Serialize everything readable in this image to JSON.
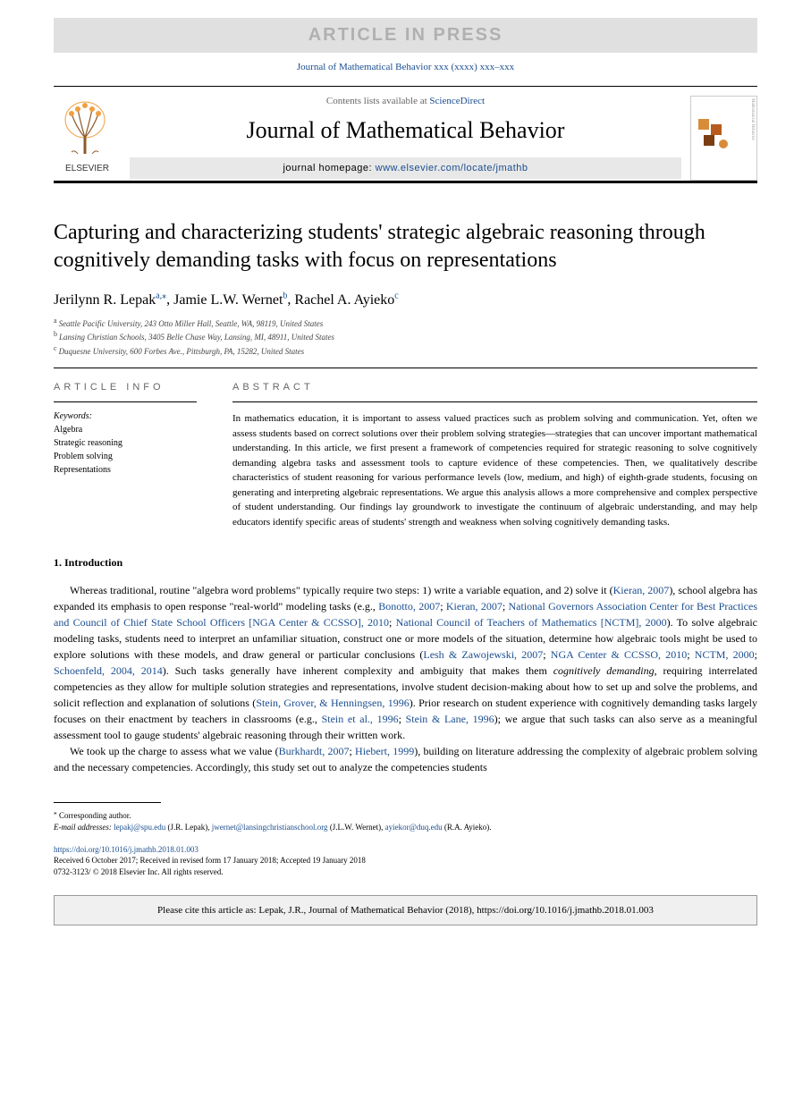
{
  "banner": "ARTICLE IN PRESS",
  "journal_ref": "Journal of Mathematical Behavior xxx (xxxx) xxx–xxx",
  "header": {
    "contents_prefix": "Contents lists available at ",
    "contents_link": "ScienceDirect",
    "journal_name": "Journal of Mathematical Behavior",
    "homepage_label": "journal homepage: ",
    "homepage_url": "www.elsevier.com/locate/jmathb",
    "publisher_logo_text": "ELSEVIER"
  },
  "colors": {
    "link": "#1a4d8f",
    "banner_bg": "#e0e0e0",
    "banner_fg": "#b0b0b0",
    "cover_accent1": "#d88c3a",
    "cover_accent2": "#b85c1e",
    "cover_accent3": "#7a3e12"
  },
  "title": "Capturing and characterizing students' strategic algebraic reasoning through cognitively demanding tasks with focus on representations",
  "authors": [
    {
      "name": "Jerilynn R. Lepak",
      "affil": "a",
      "corr": true
    },
    {
      "name": "Jamie L.W. Wernet",
      "affil": "b",
      "corr": false
    },
    {
      "name": "Rachel A. Ayieko",
      "affil": "c",
      "corr": false
    }
  ],
  "affiliations": [
    {
      "sup": "a",
      "text": "Seattle Pacific University, 243 Otto Miller Hall, Seattle, WA, 98119, United States"
    },
    {
      "sup": "b",
      "text": "Lansing Christian Schools, 3405 Belle Chase Way, Lansing, MI, 48911, United States"
    },
    {
      "sup": "c",
      "text": "Duquesne University, 600 Forbes Ave., Pittsburgh, PA, 15282, United States"
    }
  ],
  "info_header": "ARTICLE INFO",
  "abstract_header": "ABSTRACT",
  "keywords_label": "Keywords:",
  "keywords": [
    "Algebra",
    "Strategic reasoning",
    "Problem solving",
    "Representations"
  ],
  "abstract_text": "In mathematics education, it is important to assess valued practices such as problem solving and communication. Yet, often we assess students based on correct solutions over their problem solving strategies—strategies that can uncover important mathematical understanding. In this article, we first present a framework of competencies required for strategic reasoning to solve cognitively demanding algebra tasks and assessment tools to capture evidence of these competencies. Then, we qualitatively describe characteristics of student reasoning for various performance levels (low, medium, and high) of eighth-grade students, focusing on generating and interpreting algebraic representations. We argue this analysis allows a more comprehensive and complex perspective of student understanding. Our findings lay groundwork to investigate the continuum of algebraic understanding, and may help educators identify specific areas of students' strength and weakness when solving cognitively demanding tasks.",
  "section1_heading": "1. Introduction",
  "intro": {
    "p1_pre": "Whereas traditional, routine \"algebra word problems\" typically require two steps: 1) write a variable equation, and 2) solve it (",
    "p1_c1": "Kieran, 2007",
    "p1_mid1": "), school algebra has expanded its emphasis to open response \"real-world\" modeling tasks (e.g., ",
    "p1_c2": "Bonotto, 2007",
    "p1_mid2": "; ",
    "p1_c3": "Kieran, 2007",
    "p1_mid3": "; ",
    "p1_c4": "National Governors Association Center for Best Practices and Council of Chief State School Officers [NGA Center & CCSSO], 2010",
    "p1_mid4": "; ",
    "p1_c5": "National Council of Teachers of Mathematics [NCTM], 2000",
    "p1_mid5": "). To solve algebraic modeling tasks, students need to interpret an unfamiliar situation, construct one or more models of the situation, determine how algebraic tools might be used to explore solutions with these models, and draw general or particular conclusions (",
    "p1_c6": "Lesh & Zawojewski, 2007",
    "p1_mid6": "; ",
    "p1_c7": "NGA Center & CCSSO, 2010",
    "p1_mid7": "; ",
    "p1_c8": "NCTM, 2000",
    "p1_mid8": "; ",
    "p1_c9": "Schoenfeld, 2004, 2014",
    "p1_mid9": "). Such tasks generally have inherent complexity and ambiguity that makes them ",
    "p1_em": "cognitively demanding",
    "p1_mid10": ", requiring interrelated competencies as they allow for multiple solution strategies and representations, involve student decision-making about how to set up and solve the problems, and solicit reflection and explanation of solutions (",
    "p1_c10": "Stein, Grover, & Henningsen, 1996",
    "p1_mid11": "). Prior research on student experience with cognitively demanding tasks largely focuses on their enactment by teachers in classrooms (e.g., ",
    "p1_c11": "Stein et al., 1996",
    "p1_mid12": "; ",
    "p1_c12": "Stein & Lane, 1996",
    "p1_mid13": "); we argue that such tasks can also serve as a meaningful assessment tool to gauge students' algebraic reasoning through their written work.",
    "p2_pre": "We took up the charge to assess what we value (",
    "p2_c1": "Burkhardt, 2007",
    "p2_mid1": "; ",
    "p2_c2": "Hiebert, 1999",
    "p2_mid2": "), building on literature addressing the complexity of algebraic problem solving and the necessary competencies. Accordingly, this study set out to analyze the competencies students"
  },
  "corresponding": {
    "marker": "⁎",
    "label": "Corresponding author.",
    "emails_label": "E-mail addresses:",
    "emails": [
      {
        "addr": "lepakj@spu.edu",
        "name": "(J.R. Lepak)"
      },
      {
        "addr": "jwernet@lansingchristianschool.org",
        "name": "(J.L.W. Wernet)"
      },
      {
        "addr": "ayiekor@duq.edu",
        "name": "(R.A. Ayieko)"
      }
    ]
  },
  "doi": {
    "url": "https://doi.org/10.1016/j.jmathb.2018.01.003",
    "received": "Received 6 October 2017; Received in revised form 17 January 2018; Accepted 19 January 2018",
    "issn": "0732-3123/ © 2018 Elsevier Inc. All rights reserved."
  },
  "cite_box": "Please cite this article as: Lepak, J.R., Journal of Mathematical Behavior (2018), https://doi.org/10.1016/j.jmathb.2018.01.003"
}
